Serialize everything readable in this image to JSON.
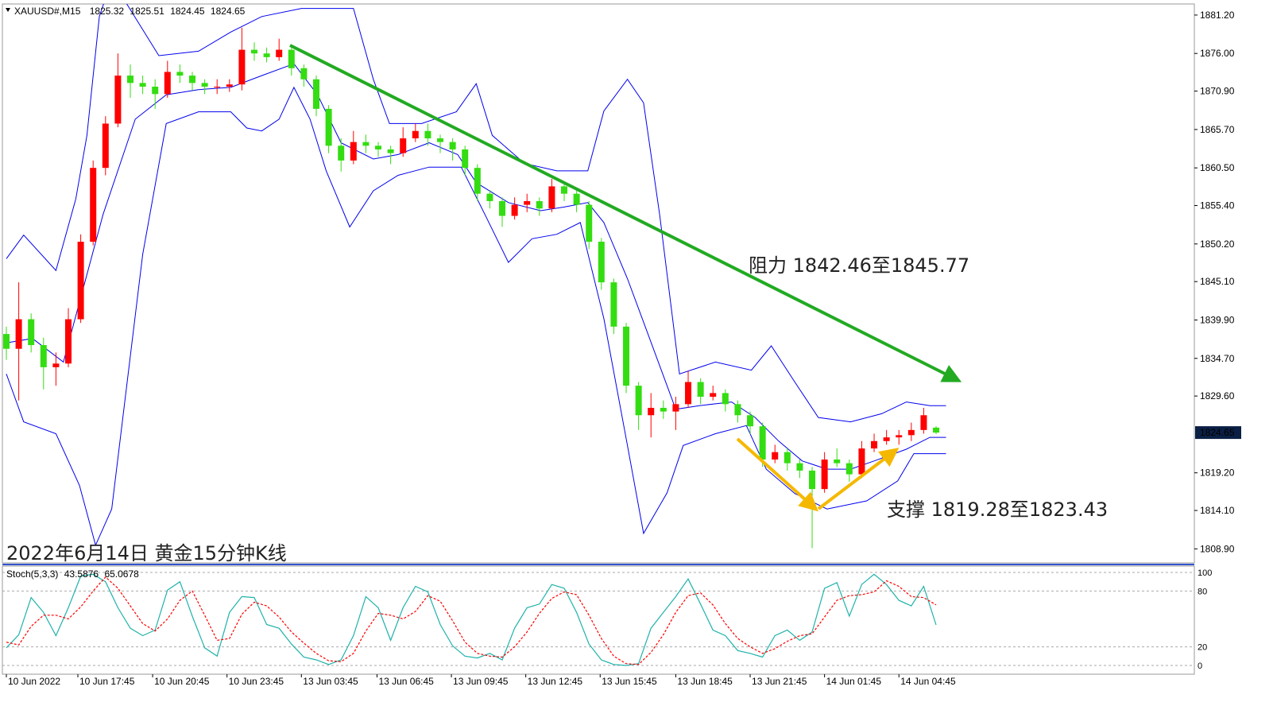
{
  "chart_data": [
    {
      "type": "candlestick",
      "symbol": "XAUUSD#,M15",
      "title": "2022年6月14日 黄金15分钟K线",
      "annotations": [
        "阻力 1842.46至1845.77",
        "支撑 1819.28至1823.43"
      ],
      "up_color": "#ff0000",
      "down_color": "#33dd11",
      "open": [
        1838.0,
        1836.0,
        1840.0,
        1836.5,
        1833.5,
        1834.0,
        1840.0,
        1850.5,
        1860.5,
        1866.5,
        1873.0,
        1872.0,
        1871.5,
        1870.5,
        1873.5,
        1873.0,
        1872.0,
        1871.5,
        1871.5,
        1871.8,
        1876.5,
        1876.0,
        1875.5,
        1876.5,
        1874.0,
        1872.5,
        1868.5,
        1863.5,
        1861.5,
        1864.0,
        1863.5,
        1863.0,
        1862.5,
        1864.5,
        1865.5,
        1864.5,
        1864.0,
        1863.0,
        1860.5,
        1857.0,
        1856.0,
        1854.0,
        1855.5,
        1856.0,
        1855.0,
        1858.0,
        1857.0,
        1855.5,
        1850.5,
        1845.0,
        1839.0,
        1831.0,
        1827.0,
        1828.0,
        1827.5,
        1828.5,
        1831.5,
        1829.5,
        1830.0,
        1828.5,
        1827.0,
        1825.5,
        1821.0,
        1822.0,
        1820.5,
        1819.5,
        1817.0,
        1821.0,
        1820.5,
        1819.0,
        1822.5,
        1823.5,
        1824.0,
        1824.3,
        1825.0,
        1825.32
      ],
      "high": [
        1839.0,
        1845.0,
        1840.8,
        1837.5,
        1835.5,
        1841.5,
        1851.5,
        1861.5,
        1867.5,
        1876.0,
        1874.5,
        1873.0,
        1872.5,
        1875.0,
        1874.5,
        1873.5,
        1872.5,
        1872.5,
        1872.5,
        1879.5,
        1877.5,
        1876.8,
        1878.0,
        1877.0,
        1874.5,
        1873.0,
        1869.0,
        1864.5,
        1865.5,
        1865.0,
        1864.0,
        1863.5,
        1866.0,
        1866.5,
        1866.5,
        1865.0,
        1864.5,
        1863.5,
        1861.0,
        1857.5,
        1856.5,
        1856.5,
        1857.0,
        1856.5,
        1859.0,
        1858.5,
        1857.5,
        1856.0,
        1851.0,
        1845.5,
        1839.5,
        1831.5,
        1830.0,
        1829.0,
        1829.5,
        1833.0,
        1832.0,
        1831.0,
        1830.5,
        1829.0,
        1827.5,
        1826.0,
        1823.0,
        1822.5,
        1821.0,
        1820.0,
        1822.0,
        1822.5,
        1821.0,
        1823.5,
        1824.5,
        1825.0,
        1825.0,
        1826.0,
        1828.0,
        1825.51
      ],
      "low": [
        1834.5,
        1829.0,
        1835.5,
        1830.5,
        1831.0,
        1833.5,
        1839.5,
        1850.0,
        1859.5,
        1866.0,
        1870.0,
        1870.5,
        1868.5,
        1870.0,
        1872.0,
        1871.0,
        1870.5,
        1870.5,
        1870.8,
        1871.0,
        1875.0,
        1874.8,
        1875.0,
        1873.0,
        1871.5,
        1867.5,
        1862.5,
        1860.0,
        1861.0,
        1862.5,
        1862.0,
        1861.0,
        1862.0,
        1864.0,
        1863.5,
        1862.5,
        1861.5,
        1859.5,
        1856.0,
        1855.0,
        1852.5,
        1853.5,
        1854.5,
        1854.0,
        1854.5,
        1856.0,
        1854.5,
        1849.5,
        1844.0,
        1838.0,
        1830.0,
        1825.0,
        1824.0,
        1826.5,
        1825.0,
        1828.0,
        1828.5,
        1829.0,
        1827.5,
        1826.0,
        1824.5,
        1820.0,
        1820.5,
        1819.5,
        1818.5,
        1809.0,
        1816.5,
        1820.0,
        1818.0,
        1818.5,
        1822.0,
        1823.0,
        1823.0,
        1823.5,
        1824.5,
        1824.45
      ],
      "close": [
        1836.0,
        1840.0,
        1836.5,
        1833.5,
        1834.0,
        1840.0,
        1850.5,
        1860.5,
        1866.5,
        1873.0,
        1872.0,
        1871.5,
        1870.5,
        1873.5,
        1873.0,
        1872.0,
        1871.5,
        1871.5,
        1871.8,
        1876.5,
        1876.0,
        1875.5,
        1876.5,
        1874.0,
        1872.5,
        1868.5,
        1863.5,
        1861.5,
        1864.0,
        1863.5,
        1863.0,
        1862.5,
        1864.5,
        1865.5,
        1864.5,
        1864.0,
        1863.0,
        1860.5,
        1857.0,
        1856.0,
        1854.0,
        1855.5,
        1856.0,
        1855.0,
        1858.0,
        1857.0,
        1855.5,
        1850.5,
        1845.0,
        1839.0,
        1831.0,
        1827.0,
        1828.0,
        1827.5,
        1828.5,
        1831.5,
        1829.5,
        1830.0,
        1828.5,
        1827.0,
        1825.5,
        1821.0,
        1822.0,
        1820.5,
        1819.5,
        1817.0,
        1821.0,
        1820.5,
        1819.0,
        1822.5,
        1823.5,
        1824.0,
        1824.3,
        1825.0,
        1827.0,
        1824.65
      ],
      "bands": {
        "color": "#0000ee",
        "upper": {
          "x": [
            0,
            1.4,
            4.0,
            5.6,
            6.5,
            7.5,
            8.5,
            12.3,
            15.5,
            18.1,
            20.6,
            23.8,
            28.0,
            29.6,
            30.9,
            33.5,
            36.3,
            37.9,
            39.2,
            41.8,
            44.4,
            46.9,
            48.2,
            50.1,
            51.4,
            52.7,
            54.3,
            57.2,
            60.1,
            61.7,
            63.6,
            65.5,
            68.1,
            70.6,
            72.6,
            74.5,
            75.8
          ],
          "values": [
            1848.2,
            1851.4,
            1846.6,
            1856.3,
            1864.9,
            1881.0,
            1886.0,
            1875.7,
            1876.3,
            1878.9,
            1881.0,
            1882.1,
            1882.1,
            1872.5,
            1866.5,
            1866.5,
            1868.1,
            1871.9,
            1864.9,
            1861.1,
            1860.1,
            1860.1,
            1868.2,
            1872.5,
            1869.3,
            1854.2,
            1832.6,
            1834.2,
            1833.1,
            1836.4,
            1831.5,
            1826.7,
            1826.1,
            1827.2,
            1828.8,
            1828.3,
            1828.3
          ]
        },
        "middle": {
          "x": [
            0,
            2.1,
            4.6,
            5.9,
            7.8,
            10.4,
            12.9,
            15.5,
            18.1,
            20.6,
            23.2,
            25.1,
            27.0,
            29.6,
            31.6,
            34.1,
            36.4,
            37.9,
            40.5,
            43.1,
            45.0,
            46.9,
            48.2,
            50.1,
            52.0,
            54.0,
            55.9,
            58.5,
            60.4,
            62.3,
            64.2,
            66.2,
            68.1,
            70.0,
            72.6,
            74.5,
            75.8
          ],
          "values": [
            1836.8,
            1837.4,
            1834.2,
            1842.3,
            1854.2,
            1867.1,
            1870.4,
            1871.1,
            1871.4,
            1873.0,
            1874.6,
            1870.4,
            1863.9,
            1861.7,
            1862.3,
            1863.9,
            1862.3,
            1858.5,
            1855.8,
            1854.7,
            1855.2,
            1855.8,
            1853.1,
            1845.5,
            1836.9,
            1827.8,
            1828.3,
            1828.8,
            1826.7,
            1823.5,
            1820.8,
            1819.7,
            1819.7,
            1820.8,
            1822.4,
            1824.0,
            1824.0
          ]
        },
        "lower": {
          "x": [
            0,
            1.4,
            4.0,
            5.9,
            7.2,
            8.5,
            11.0,
            12.9,
            15.5,
            18.1,
            19.4,
            20.6,
            22.0,
            23.2,
            24.5,
            25.8,
            27.7,
            29.6,
            31.6,
            34.1,
            36.7,
            38.6,
            40.5,
            42.4,
            44.4,
            46.3,
            48.2,
            50.1,
            51.4,
            53.3,
            54.6,
            57.2,
            59.7,
            61.3,
            63.6,
            66.2,
            69.4,
            71.9,
            73.2,
            75.8
          ],
          "values": [
            1832.6,
            1826.1,
            1824.5,
            1817.5,
            1809.4,
            1814.3,
            1848.8,
            1866.5,
            1868.1,
            1868.1,
            1865.9,
            1865.5,
            1867.1,
            1871.4,
            1867.1,
            1860.1,
            1852.5,
            1857.4,
            1859.5,
            1860.6,
            1860.6,
            1854.2,
            1847.7,
            1850.9,
            1851.5,
            1853.1,
            1840.1,
            1822.9,
            1811.0,
            1816.5,
            1822.9,
            1824.5,
            1825.6,
            1819.7,
            1816.4,
            1814.3,
            1815.4,
            1818.1,
            1821.8,
            1821.8
          ]
        }
      },
      "xlim": [
        -0.32,
        95.83
      ],
      "ylim": [
        1807.0,
        1882.7
      ],
      "yticks": [
        {
          "value": 1881.2,
          "label": "1881.20"
        },
        {
          "value": 1876.0,
          "label": "1876.00"
        },
        {
          "value": 1870.9,
          "label": "1870.90"
        },
        {
          "value": 1865.7,
          "label": "1865.70"
        },
        {
          "value": 1860.5,
          "label": "1860.50"
        },
        {
          "value": 1855.4,
          "label": "1855.40"
        },
        {
          "value": 1850.2,
          "label": "1850.20"
        },
        {
          "value": 1845.1,
          "label": "1845.10"
        },
        {
          "value": 1839.9,
          "label": "1839.90"
        },
        {
          "value": 1834.7,
          "label": "1834.70"
        },
        {
          "value": 1829.6,
          "label": "1829.60"
        },
        {
          "value": 1819.2,
          "label": "1819.20"
        },
        {
          "value": 1814.1,
          "label": "1814.10"
        },
        {
          "value": 1808.9,
          "label": "1808.90"
        }
      ],
      "xticks": [
        {
          "value": 0,
          "label": "10 Jun 2022"
        },
        {
          "value": 5.77,
          "label": "10 Jun 17:45"
        },
        {
          "value": 11.8,
          "label": "10 Jun 20:45"
        },
        {
          "value": 17.8,
          "label": "10 Jun 23:45"
        },
        {
          "value": 23.8,
          "label": "13 Jun 03:45"
        },
        {
          "value": 29.9,
          "label": "13 Jun 06:45"
        },
        {
          "value": 35.9,
          "label": "13 Jun 09:45"
        },
        {
          "value": 41.9,
          "label": "13 Jun 12:45"
        },
        {
          "value": 47.9,
          "label": "13 Jun 15:45"
        },
        {
          "value": 54.0,
          "label": "13 Jun 18:45"
        },
        {
          "value": 60.0,
          "label": "13 Jun 21:45"
        },
        {
          "value": 66.0,
          "label": "14 Jun 01:45"
        },
        {
          "value": 72.0,
          "label": "14 Jun 04:45"
        }
      ]
    },
    {
      "type": "line",
      "name": "Stoch(5,3,3)",
      "xlim": [
        -0.32,
        95.83
      ],
      "ylim": [
        -9.4,
        106.8
      ],
      "yticks": [
        0,
        20,
        80,
        100
      ],
      "grid": true,
      "series": [
        {
          "color": "#20b2aa",
          "dashed": false,
          "values": [
            19,
            33,
            73,
            57,
            32,
            62,
            96,
            98,
            90,
            62,
            40,
            32,
            38,
            81,
            90,
            53,
            19,
            10,
            57,
            74,
            73,
            44,
            40,
            23,
            9,
            6,
            1,
            6,
            32,
            74,
            62,
            27,
            62,
            85,
            79,
            44,
            21,
            10,
            8,
            13,
            6,
            40,
            62,
            66,
            87,
            83,
            57,
            23,
            6,
            1,
            0,
            2,
            40,
            57,
            74,
            93,
            66,
            38,
            32,
            16,
            13,
            9,
            32,
            38,
            27,
            36,
            83,
            89,
            53,
            87,
            98,
            87,
            70,
            64,
            85,
            43.5876
          ]
        },
        {
          "color": "#ff0000",
          "dashed": true,
          "values": [
            25,
            22,
            42,
            54,
            54,
            50,
            63,
            80,
            95,
            83,
            64,
            45,
            37,
            50,
            70,
            80,
            54,
            27,
            29,
            55,
            68,
            64,
            52,
            36,
            24,
            13,
            5,
            4,
            13,
            37,
            56,
            54,
            50,
            58,
            75,
            69,
            48,
            25,
            13,
            10,
            9,
            20,
            36,
            56,
            72,
            79,
            76,
            54,
            29,
            10,
            2,
            1,
            14,
            33,
            57,
            75,
            78,
            65,
            45,
            29,
            20,
            13,
            18,
            26,
            32,
            34,
            52,
            70,
            75,
            76,
            79,
            91,
            85,
            74,
            73,
            65.0678
          ]
        }
      ]
    }
  ]
}
